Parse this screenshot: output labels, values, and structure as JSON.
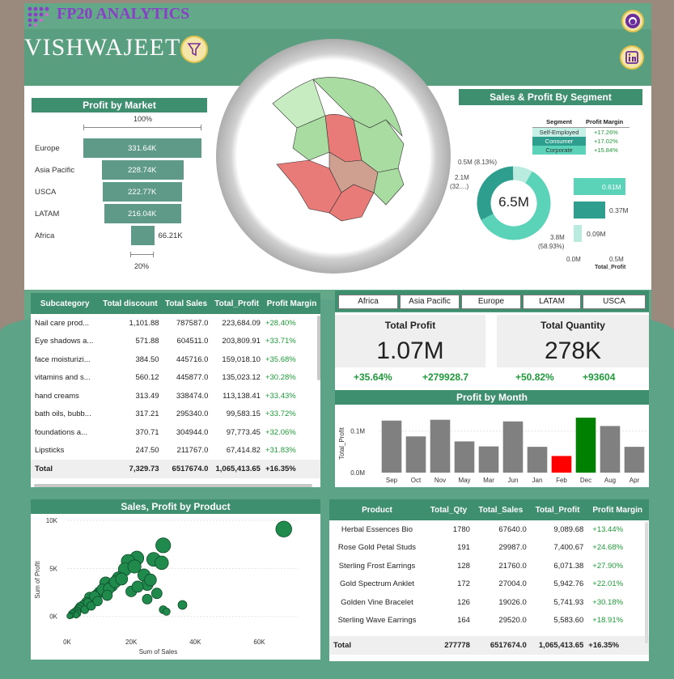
{
  "header": {
    "brand": "FP20 ANALYTICS",
    "name": "VISHWAJEET",
    "github_icon": "github-icon",
    "linkedin_icon": "linkedin-icon",
    "filter_icon": "funnel-filter-icon"
  },
  "profit_by_market": {
    "title": "Profit by Market",
    "top_pct": "100%",
    "bottom_pct": "20%",
    "rows": [
      {
        "label": "Europe",
        "value": "331.64K"
      },
      {
        "label": "Asia Pacific",
        "value": "228.74K"
      },
      {
        "label": "USCA",
        "value": "222.77K"
      },
      {
        "label": "LATAM",
        "value": "216.04K"
      },
      {
        "label": "Africa",
        "value": "66.21K"
      }
    ]
  },
  "segment": {
    "title": "Sales & Profit By Segment",
    "col1": "Segment",
    "col2": "Profit Margin",
    "rows": [
      {
        "name": "Self-Employed",
        "margin": "+17.26%"
      },
      {
        "name": "Consumer",
        "margin": "+17.02%"
      },
      {
        "name": "Corporate",
        "margin": "+15.84%"
      }
    ],
    "donut_center": "6.5M",
    "donut_labels": {
      "a": "0.5M (8.13%)",
      "b1": "2.1M",
      "b2": "(32....)",
      "c1": "3.8M",
      "c2": "(58.93%)"
    },
    "bar_values": [
      "0.61M",
      "0.37M",
      "0.09M"
    ],
    "bar_axis": [
      "0.0M",
      "0.5M"
    ],
    "bar_axis_title": "Total_Profit"
  },
  "subcat_table": {
    "headers": [
      "Subcategory",
      "Total discount",
      "Total Sales",
      "Total_Profit",
      "Profit Margin"
    ],
    "rows": [
      [
        "Nail care prod...",
        "1,101.88",
        "787587.0",
        "223,684.09",
        "+28.40%"
      ],
      [
        "Eye shadows a...",
        "571.88",
        "604511.0",
        "203,809.91",
        "+33.71%"
      ],
      [
        "face moisturizi...",
        "384.50",
        "445716.0",
        "159,018.10",
        "+35.68%"
      ],
      [
        "vitamins and s...",
        "560.12",
        "445877.0",
        "135,023.12",
        "+30.28%"
      ],
      [
        "hand creams",
        "313.49",
        "338474.0",
        "113,138.41",
        "+33.43%"
      ],
      [
        "bath oils, bubb...",
        "317.21",
        "295340.0",
        "99,583.15",
        "+33.72%"
      ],
      [
        "foundations a...",
        "370.71",
        "304944.0",
        "97,773.45",
        "+32.06%"
      ],
      [
        "Lipsticks",
        "247.50",
        "211767.0",
        "67,414.82",
        "+31.83%"
      ]
    ],
    "total": [
      "Total",
      "7,329.73",
      "6517674.0",
      "1,065,413.65",
      "+16.35%"
    ]
  },
  "market_filters": [
    "Africa",
    "Asia Pacific",
    "Europe",
    "LATAM",
    "USCA"
  ],
  "kpi": {
    "profit_title": "Total Profit",
    "profit_value": "1.07M",
    "profit_pct": "+35.64%",
    "profit_delta": "+279928.7",
    "qty_title": "Total Quantity",
    "qty_value": "278K",
    "qty_pct": "+50.82%",
    "qty_delta": "+93604"
  },
  "profit_by_month": {
    "title": "Profit by Month",
    "y_title": "Total_Profit",
    "y_ticks": [
      "0.1M",
      "0.0M"
    ]
  },
  "chart_data": [
    {
      "type": "bar",
      "title": "Profit by Month",
      "ylabel": "Total_Profit",
      "categories": [
        "Sep",
        "Oct",
        "Nov",
        "May",
        "Mar",
        "Jun",
        "Jan",
        "Feb",
        "Dec",
        "Aug",
        "Apr"
      ],
      "values": [
        0.125,
        0.087,
        0.127,
        0.075,
        0.063,
        0.123,
        0.062,
        0.04,
        0.132,
        0.112,
        0.062
      ],
      "ylim": [
        0,
        0.14
      ],
      "colors": [
        "#808080",
        "#808080",
        "#808080",
        "#808080",
        "#808080",
        "#808080",
        "#808080",
        "#ff0000",
        "#008000",
        "#808080",
        "#808080"
      ]
    },
    {
      "type": "scatter",
      "title": "Sales, Profit by Product",
      "xlabel": "Sum of Sales",
      "ylabel": "Sum of Profit",
      "xlim": [
        0,
        72000
      ],
      "ylim": [
        -700,
        10000
      ],
      "x_ticks": [
        "0K",
        "20K",
        "40K",
        "60K"
      ],
      "y_ticks": [
        "10K",
        "5K",
        "0K"
      ],
      "points": [
        [
          67640,
          9090
        ],
        [
          29987,
          7401
        ],
        [
          21760,
          6071
        ],
        [
          27004,
          5943
        ],
        [
          19026,
          5742
        ],
        [
          29520,
          5584
        ],
        [
          24000,
          4300
        ],
        [
          18000,
          4900
        ],
        [
          21000,
          5200
        ],
        [
          16000,
          4000
        ],
        [
          12000,
          3500
        ],
        [
          14000,
          3200
        ],
        [
          10000,
          2500
        ],
        [
          8000,
          1800
        ],
        [
          7000,
          2000
        ],
        [
          6000,
          1500
        ],
        [
          9000,
          2200
        ],
        [
          11000,
          2800
        ],
        [
          5000,
          1200
        ],
        [
          4500,
          900
        ],
        [
          4000,
          1000
        ],
        [
          3500,
          800
        ],
        [
          3000,
          600
        ],
        [
          2500,
          500
        ],
        [
          2000,
          400
        ],
        [
          1500,
          300
        ],
        [
          6500,
          1400
        ],
        [
          8500,
          2100
        ],
        [
          13000,
          2900
        ],
        [
          15000,
          3600
        ],
        [
          17000,
          3900
        ],
        [
          25000,
          3300
        ],
        [
          26000,
          3800
        ],
        [
          28000,
          2400
        ],
        [
          30000,
          700
        ],
        [
          31000,
          500
        ],
        [
          36000,
          1200
        ],
        [
          25000,
          1800
        ],
        [
          20000,
          2600
        ],
        [
          22000,
          3100
        ],
        [
          5500,
          700
        ],
        [
          7500,
          1100
        ],
        [
          9500,
          1600
        ],
        [
          12500,
          2200
        ],
        [
          3200,
          300
        ],
        [
          2800,
          150
        ],
        [
          1200,
          100
        ],
        [
          800,
          50
        ]
      ]
    }
  ],
  "scatter": {
    "title": "Sales, Profit by Product",
    "xlabel": "Sum of Sales",
    "ylabel": "Sum of Profit"
  },
  "product_table": {
    "headers": [
      "Product",
      "Total_Qty",
      "Total_Sales",
      "Total_Profit",
      "Profit Margin"
    ],
    "rows": [
      [
        "Herbal Essences Bio",
        "1780",
        "67640.0",
        "9,089.68",
        "+13.44%"
      ],
      [
        "Rose Gold Petal Studs",
        "191",
        "29987.0",
        "7,400.67",
        "+24.68%"
      ],
      [
        "Sterling Frost Earrings",
        "128",
        "21760.0",
        "6,071.38",
        "+27.90%"
      ],
      [
        "Gold Spectrum Anklet",
        "172",
        "27004.0",
        "5,942.76",
        "+22.01%"
      ],
      [
        "Golden Vine Bracelet",
        "126",
        "19026.0",
        "5,741.93",
        "+30.18%"
      ],
      [
        "Sterling Wave Earrings",
        "164",
        "29520.0",
        "5,583.60",
        "+18.91%"
      ]
    ],
    "total": [
      "Total",
      "277778",
      "6517674.0",
      "1,065,413.65",
      "+16.35%"
    ]
  }
}
